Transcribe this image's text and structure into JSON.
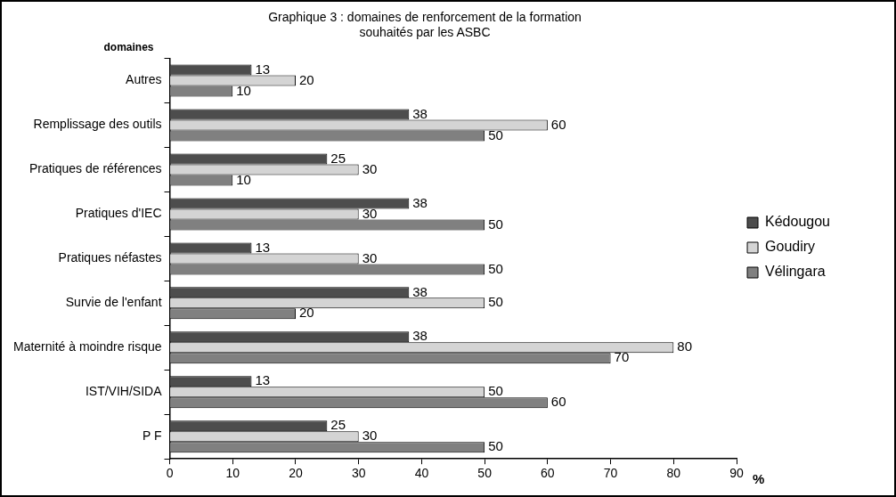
{
  "chart_data": {
    "type": "bar",
    "orientation": "horizontal",
    "title": "Graphique 3 : domaines de renforcement de la formation\nsouhaités par les ASBC",
    "ylabel": "domaines",
    "xlabel": "%",
    "categories": [
      "Autres",
      "Remplissage des outils",
      "Pratiques de références",
      "Pratiques d'IEC",
      "Pratiques néfastes",
      "Survie de l'enfant",
      "Maternité à moindre risque",
      "IST/VIH/SIDA",
      "P F"
    ],
    "series": [
      {
        "name": "Kédougou",
        "color": "#4d4d4d",
        "values": [
          13,
          38,
          25,
          38,
          13,
          38,
          38,
          13,
          25
        ]
      },
      {
        "name": "Goudiry",
        "color": "#d4d4d4",
        "values": [
          20,
          60,
          30,
          30,
          30,
          50,
          80,
          50,
          30
        ]
      },
      {
        "name": "Vélingara",
        "color": "#808080",
        "values": [
          10,
          50,
          10,
          50,
          50,
          20,
          70,
          60,
          50
        ]
      }
    ],
    "xlim": [
      0,
      90
    ],
    "xticks": [
      0,
      10,
      20,
      30,
      40,
      50,
      60,
      70,
      80,
      90
    ],
    "data_labels": true,
    "grid": false,
    "legend": "right"
  }
}
